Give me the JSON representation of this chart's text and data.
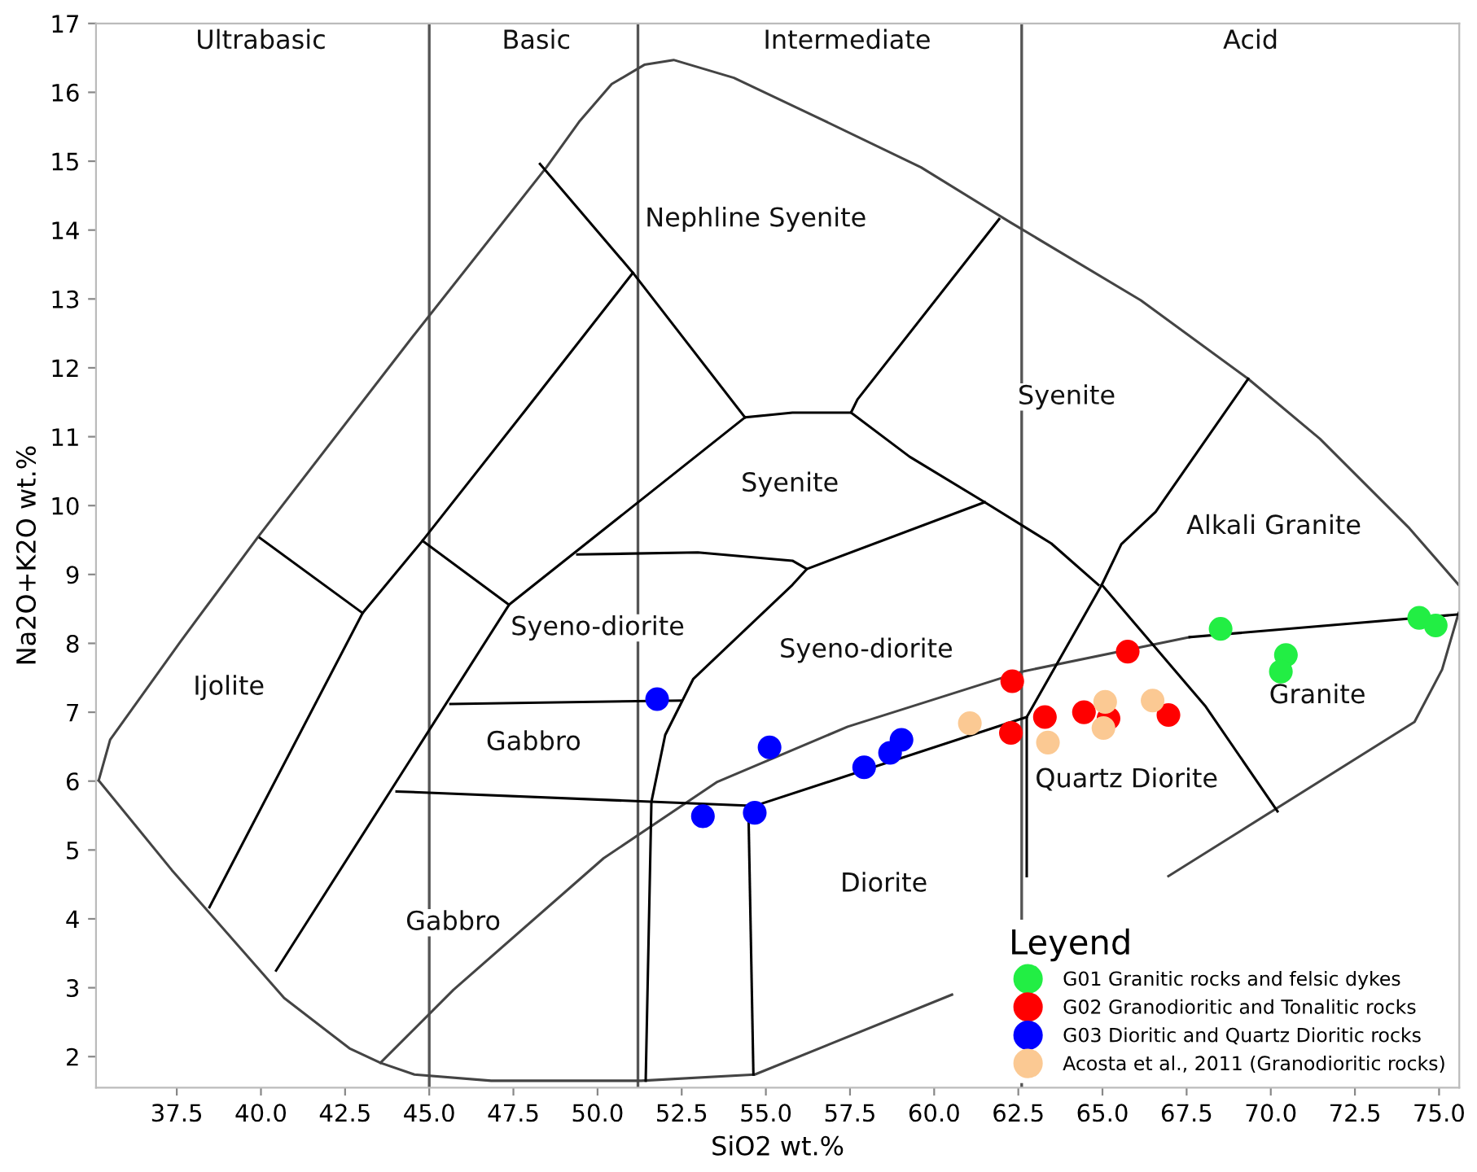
{
  "chart_data": {
    "type": "scatter",
    "xlabel": "SiO2 wt.%",
    "ylabel": "Na2O+K2O wt.%",
    "legend_title": "Leyend",
    "legend": "bottom right",
    "grid": false,
    "marker": "none",
    "xlim": [
      35.1,
      75.6
    ],
    "ylim": [
      1.55,
      17
    ],
    "xticks": [
      {
        "value": 37.5,
        "label": "37.5"
      },
      {
        "value": 40.0,
        "label": "40.0"
      },
      {
        "value": 42.5,
        "label": "42.5"
      },
      {
        "value": 45.0,
        "label": "45.0"
      },
      {
        "value": 47.5,
        "label": "47.5"
      },
      {
        "value": 50.0,
        "label": "50.0"
      },
      {
        "value": 52.5,
        "label": "52.5"
      },
      {
        "value": 55.0,
        "label": "55.0"
      },
      {
        "value": 57.5,
        "label": "57.5"
      },
      {
        "value": 60.0,
        "label": "60.0"
      },
      {
        "value": 62.5,
        "label": "62.5"
      },
      {
        "value": 65.0,
        "label": "65.0"
      },
      {
        "value": 67.5,
        "label": "67.5"
      },
      {
        "value": 70.0,
        "label": "70.0"
      },
      {
        "value": 72.5,
        "label": "72.5"
      },
      {
        "value": 75.0,
        "label": "75.0"
      }
    ],
    "yticks": [
      2,
      3,
      4,
      5,
      6,
      7,
      8,
      9,
      10,
      11,
      12,
      13,
      14,
      15,
      16,
      17
    ],
    "ref_lines": [
      {
        "axis": "x",
        "value": 45.0,
        "color": "#555555"
      },
      {
        "axis": "x",
        "value": 51.2,
        "color": "#555555"
      },
      {
        "axis": "x",
        "value": 62.6,
        "color": "#555555"
      }
    ],
    "series": [
      {
        "type": "line",
        "color": "#444444",
        "x": [
          35.18,
          35.52,
          37.6,
          39.92,
          44.52,
          48.48,
          49.45,
          50.42,
          51.39,
          52.26,
          54.05,
          56.47,
          59.61,
          62.27,
          66.14,
          69.33,
          71.46,
          74.12,
          75.58
        ],
        "values": [
          6.01,
          6.6,
          8.02,
          9.55,
          12.46,
          14.91,
          15.57,
          16.12,
          16.4,
          16.47,
          16.21,
          15.65,
          14.91,
          14.11,
          12.98,
          11.84,
          10.97,
          9.67,
          8.85
        ]
      },
      {
        "type": "line",
        "color": "#444444",
        "x": [
          35.18,
          37.35,
          40.69,
          42.63,
          43.55,
          44.56,
          46.84,
          51.29,
          54.67,
          60.53
        ],
        "values": [
          6.01,
          4.71,
          2.85,
          2.12,
          1.91,
          1.74,
          1.65,
          1.65,
          1.74,
          2.9
        ]
      },
      {
        "type": "line",
        "color": "#444444",
        "x": [
          66.96,
          74.27,
          75.09,
          75.58
        ],
        "values": [
          4.62,
          6.86,
          7.62,
          8.44
        ]
      },
      {
        "type": "line",
        "color": "#444444",
        "x": [
          43.55,
          45.72,
          50.18,
          53.56,
          57.43,
          62.61,
          67.59
        ],
        "values": [
          1.91,
          2.97,
          4.88,
          5.99,
          6.79,
          7.59,
          8.09
        ]
      },
      {
        "type": "line",
        "color": "#000000",
        "x": [
          67.59,
          75.58
        ],
        "values": [
          8.09,
          8.42
        ]
      },
      {
        "type": "line",
        "color": "#000000",
        "x": [
          39.97,
          43.02
        ],
        "values": [
          9.53,
          8.44
        ]
      },
      {
        "type": "line",
        "color": "#000000",
        "x": [
          38.47,
          43.02,
          44.8,
          47.8,
          51.05
        ],
        "values": [
          4.17,
          8.44,
          9.49,
          11.35,
          13.38
        ]
      },
      {
        "type": "line",
        "color": "#000000",
        "x": [
          44.8,
          47.37
        ],
        "values": [
          9.49,
          8.56
        ]
      },
      {
        "type": "line",
        "color": "#000000",
        "x": [
          40.45,
          47.37,
          54.38
        ],
        "values": [
          3.25,
          8.56,
          11.28
        ]
      },
      {
        "type": "line",
        "color": "#000000",
        "x": [
          48.29,
          51.05,
          54.38
        ],
        "values": [
          14.96,
          13.38,
          11.28
        ]
      },
      {
        "type": "line",
        "color": "#000000",
        "x": [
          54.38,
          55.79,
          57.53,
          57.72,
          61.93
        ],
        "values": [
          11.28,
          11.35,
          11.35,
          11.54,
          14.16
        ]
      },
      {
        "type": "line",
        "color": "#000000",
        "x": [
          57.53,
          59.27,
          61.5,
          63.48,
          64.88
        ],
        "values": [
          11.35,
          10.71,
          10.05,
          9.45,
          8.85
        ]
      },
      {
        "type": "line",
        "color": "#000000",
        "x": [
          61.5,
          56.22
        ],
        "values": [
          10.05,
          9.08
        ]
      },
      {
        "type": "line",
        "color": "#000000",
        "x": [
          49.4,
          52.98,
          55.79,
          56.22,
          55.79,
          52.84,
          52.01,
          51.6,
          51.43
        ],
        "values": [
          9.29,
          9.32,
          9.2,
          9.08,
          8.85,
          7.48,
          6.67,
          5.7,
          1.65
        ]
      },
      {
        "type": "line",
        "color": "#000000",
        "x": [
          69.33,
          66.58,
          65.56,
          64.98,
          62.75,
          62.75
        ],
        "values": [
          11.84,
          9.91,
          9.44,
          8.85,
          6.93,
          4.62
        ]
      },
      {
        "type": "line",
        "color": "#000000",
        "x": [
          64.98,
          68.07,
          70.2
        ],
        "values": [
          8.85,
          7.08,
          5.56
        ]
      },
      {
        "type": "line",
        "color": "#000000",
        "x": [
          45.63,
          52.5
        ],
        "values": [
          7.12,
          7.17
        ]
      },
      {
        "type": "line",
        "color": "#000000",
        "x": [
          44.03,
          54.67
        ],
        "values": [
          5.85,
          5.64
        ]
      },
      {
        "type": "line",
        "color": "#000000",
        "x": [
          54.48,
          54.63
        ],
        "values": [
          5.64,
          1.74
        ]
      },
      {
        "type": "line",
        "color": "#000000",
        "x": [
          54.67,
          62.75
        ],
        "values": [
          5.64,
          6.93
        ]
      },
      {
        "name": "G01 Granitic rocks and felsic dykes",
        "marker": "circle",
        "color": "#22ee44",
        "x": [
          68.51,
          70.45,
          70.3,
          74.41,
          74.9
        ],
        "values": [
          8.21,
          7.83,
          7.59,
          8.37,
          8.26
        ]
      },
      {
        "name": "G02 Granodioritic and Tonalitic rocks",
        "marker": "circle",
        "color": "#ff0000",
        "x": [
          62.32,
          62.28,
          63.29,
          64.45,
          65.18,
          65.75,
          66.96
        ],
        "values": [
          7.45,
          6.7,
          6.93,
          7.0,
          6.91,
          7.88,
          6.96
        ]
      },
      {
        "name": "G03 Dioritic and Quartz Dioritic rocks",
        "marker": "circle",
        "color": "#0000ff",
        "x": [
          51.77,
          55.11,
          53.13,
          54.67,
          57.92,
          58.69,
          59.03
        ],
        "values": [
          7.19,
          6.49,
          5.49,
          5.54,
          6.2,
          6.41,
          6.6
        ]
      },
      {
        "name": "Acosta et al., 2011 (Granodioritic rocks)",
        "marker": "circle",
        "color": "#fbc993",
        "x": [
          61.06,
          63.38,
          65.08,
          65.03,
          66.49
        ],
        "values": [
          6.84,
          6.56,
          7.15,
          6.77,
          7.17
        ]
      }
    ],
    "annotations": [
      "Ultrabasic",
      "Basic",
      "Intermediate",
      "Acid",
      "Nephline Syenite",
      "Syenite",
      "Syenite",
      "Alkali Granite",
      "Syeno-diorite",
      "Syeno-diorite",
      "Ijolite",
      "Gabbro",
      "Granite",
      "Quartz Diorite",
      "Diorite",
      "Gabbro"
    ]
  }
}
